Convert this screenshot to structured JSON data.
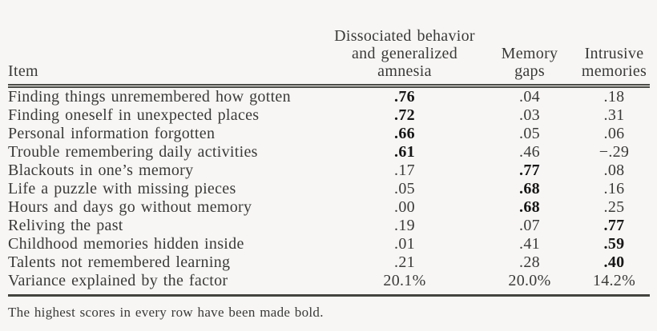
{
  "colors": {
    "background": "#f7f6f4",
    "text": "#3a3a38",
    "bold_text": "#161616",
    "rule": "#44443f"
  },
  "table": {
    "header": {
      "item": "Item",
      "factor1": "Dissociated behavior\nand generalized\namnesia",
      "factor2": "Memory\ngaps",
      "factor3": "Intrusive\nmemories"
    },
    "rows": [
      {
        "item": "Finding things unremembered how gotten",
        "values": [
          ".76",
          ".04",
          ".18"
        ],
        "bold": 0
      },
      {
        "item": "Finding oneself in unexpected places",
        "values": [
          ".72",
          ".03",
          ".31"
        ],
        "bold": 0
      },
      {
        "item": "Personal information forgotten",
        "values": [
          ".66",
          ".05",
          ".06"
        ],
        "bold": 0
      },
      {
        "item": "Trouble remembering daily activities",
        "values": [
          ".61",
          ".46",
          "−.29"
        ],
        "bold": 0
      },
      {
        "item": "Blackouts in one’s memory",
        "values": [
          ".17",
          ".77",
          ".08"
        ],
        "bold": 1
      },
      {
        "item": "Life a puzzle with missing pieces",
        "values": [
          ".05",
          ".68",
          ".16"
        ],
        "bold": 1
      },
      {
        "item": "Hours and days go without memory",
        "values": [
          ".00",
          ".68",
          ".25"
        ],
        "bold": 1
      },
      {
        "item": "Reliving the past",
        "values": [
          ".19",
          ".07",
          ".77"
        ],
        "bold": 2
      },
      {
        "item": "Childhood memories hidden inside",
        "values": [
          ".01",
          ".41",
          ".59"
        ],
        "bold": 2
      },
      {
        "item": "Talents not remembered learning",
        "values": [
          ".21",
          ".28",
          ".40"
        ],
        "bold": 2
      },
      {
        "item": "Variance explained by the factor",
        "values": [
          "20.1%",
          "20.0%",
          "14.2%"
        ],
        "bold": -1
      }
    ],
    "footnote": "The highest scores in every row have been made bold."
  }
}
